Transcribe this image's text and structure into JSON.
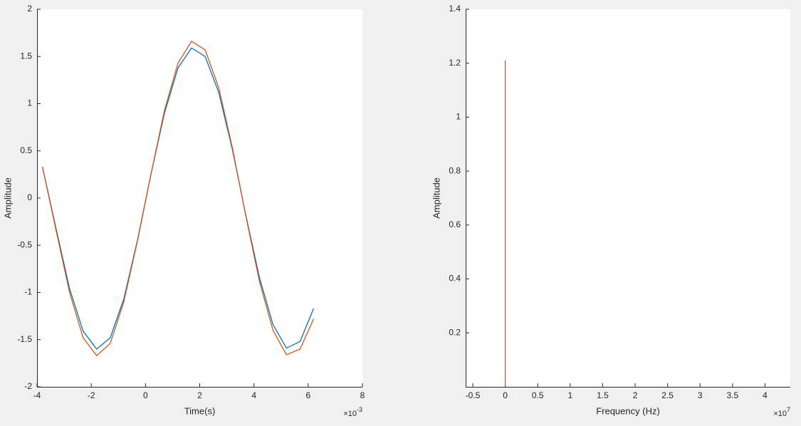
{
  "chart_data": [
    {
      "type": "line",
      "xlabel": "Time(s)",
      "ylabel": "Amplitude",
      "x_multiplier": {
        "base": "×10",
        "exponent": "-3"
      },
      "x": [
        -3.8,
        -3.3,
        -2.8,
        -2.3,
        -1.8,
        -1.3,
        -0.8,
        -0.3,
        0.2,
        0.7,
        1.2,
        1.7,
        2.2,
        2.7,
        3.2,
        3.7,
        4.2,
        4.7,
        5.2,
        5.7,
        6.2
      ],
      "series": [
        {
          "color": "#0072bd",
          "values": [
            0.33,
            -0.32,
            -0.96,
            -1.41,
            -1.6,
            -1.48,
            -1.07,
            -0.45,
            0.25,
            0.9,
            1.38,
            1.59,
            1.5,
            1.12,
            0.52,
            -0.18,
            -0.84,
            -1.34,
            -1.59,
            -1.52,
            -1.17
          ]
        },
        {
          "color": "#d95319",
          "values": [
            0.33,
            -0.34,
            -1.0,
            -1.48,
            -1.67,
            -1.54,
            -1.1,
            -0.46,
            0.25,
            0.93,
            1.43,
            1.66,
            1.57,
            1.17,
            0.54,
            -0.19,
            -0.88,
            -1.4,
            -1.66,
            -1.6,
            -1.28
          ]
        }
      ],
      "xlim": [
        -4,
        8
      ],
      "xticks": [
        -4,
        -2,
        0,
        2,
        4,
        6,
        8
      ],
      "ylim": [
        -2,
        2
      ],
      "yticks": [
        -2,
        -1.5,
        -1,
        -0.5,
        0,
        0.5,
        1,
        1.5,
        2
      ]
    },
    {
      "type": "stem",
      "xlabel": "Frequency (Hz)",
      "ylabel": "Amplitude",
      "x_multiplier": {
        "base": "×10",
        "exponent": "7"
      },
      "series": [
        {
          "color": "#d95319",
          "x": [
            0
          ],
          "values": [
            1.21
          ]
        }
      ],
      "xlim": [
        -0.61,
        4.39
      ],
      "xticks": [
        -0.5,
        0,
        0.5,
        1,
        1.5,
        2,
        2.5,
        3,
        3.5,
        4
      ],
      "ylim": [
        0,
        1.4
      ],
      "yticks": [
        0.2,
        0.4,
        0.6,
        0.8,
        1,
        1.2,
        1.4
      ]
    }
  ]
}
